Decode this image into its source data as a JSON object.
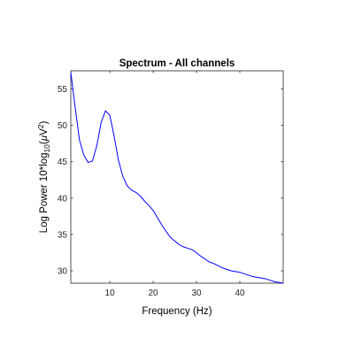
{
  "chart_data": {
    "type": "line",
    "title": "Spectrum - All channels",
    "xlabel": "Frequency (Hz)",
    "ylabel": {
      "main": "Log Power 10*log",
      "sub": "10",
      "paren_open": "(",
      "greek_mu": "μ",
      "unit": "V",
      "sup": "2",
      "paren_close": ")"
    },
    "xlim": [
      1,
      50
    ],
    "ylim": [
      28.3,
      57.5
    ],
    "xticks": [
      10,
      20,
      30,
      40
    ],
    "yticks": [
      30,
      35,
      40,
      45,
      50,
      55
    ],
    "xtick_labels": [
      "10",
      "20",
      "30",
      "40"
    ],
    "ytick_labels": [
      "30",
      "35",
      "40",
      "45",
      "50",
      "55"
    ],
    "grid": false,
    "series": [
      {
        "color": "#0000ff",
        "x": [
          1,
          2,
          3,
          4,
          5,
          6,
          7,
          8,
          9,
          10,
          11,
          12,
          13,
          14,
          15,
          16,
          17,
          18,
          19,
          20,
          21,
          22,
          23,
          24,
          25,
          26,
          27,
          28,
          29,
          30,
          31,
          32,
          33,
          34,
          35,
          36,
          37,
          38,
          39,
          40,
          41,
          42,
          43,
          44,
          45,
          46,
          47,
          48,
          49,
          50
        ],
        "y": [
          57.3,
          52.5,
          48.0,
          45.9,
          44.9,
          45.1,
          47.2,
          50.4,
          52.0,
          51.4,
          48.5,
          45.2,
          43.0,
          41.7,
          41.1,
          40.8,
          40.3,
          39.6,
          39.0,
          38.3,
          37.3,
          36.3,
          35.4,
          34.6,
          34.1,
          33.6,
          33.3,
          33.1,
          32.9,
          32.5,
          32.0,
          31.6,
          31.2,
          31.0,
          30.7,
          30.4,
          30.2,
          30.0,
          29.9,
          29.8,
          29.6,
          29.4,
          29.2,
          29.1,
          29.0,
          28.9,
          28.7,
          28.5,
          28.4,
          28.3
        ]
      }
    ]
  }
}
